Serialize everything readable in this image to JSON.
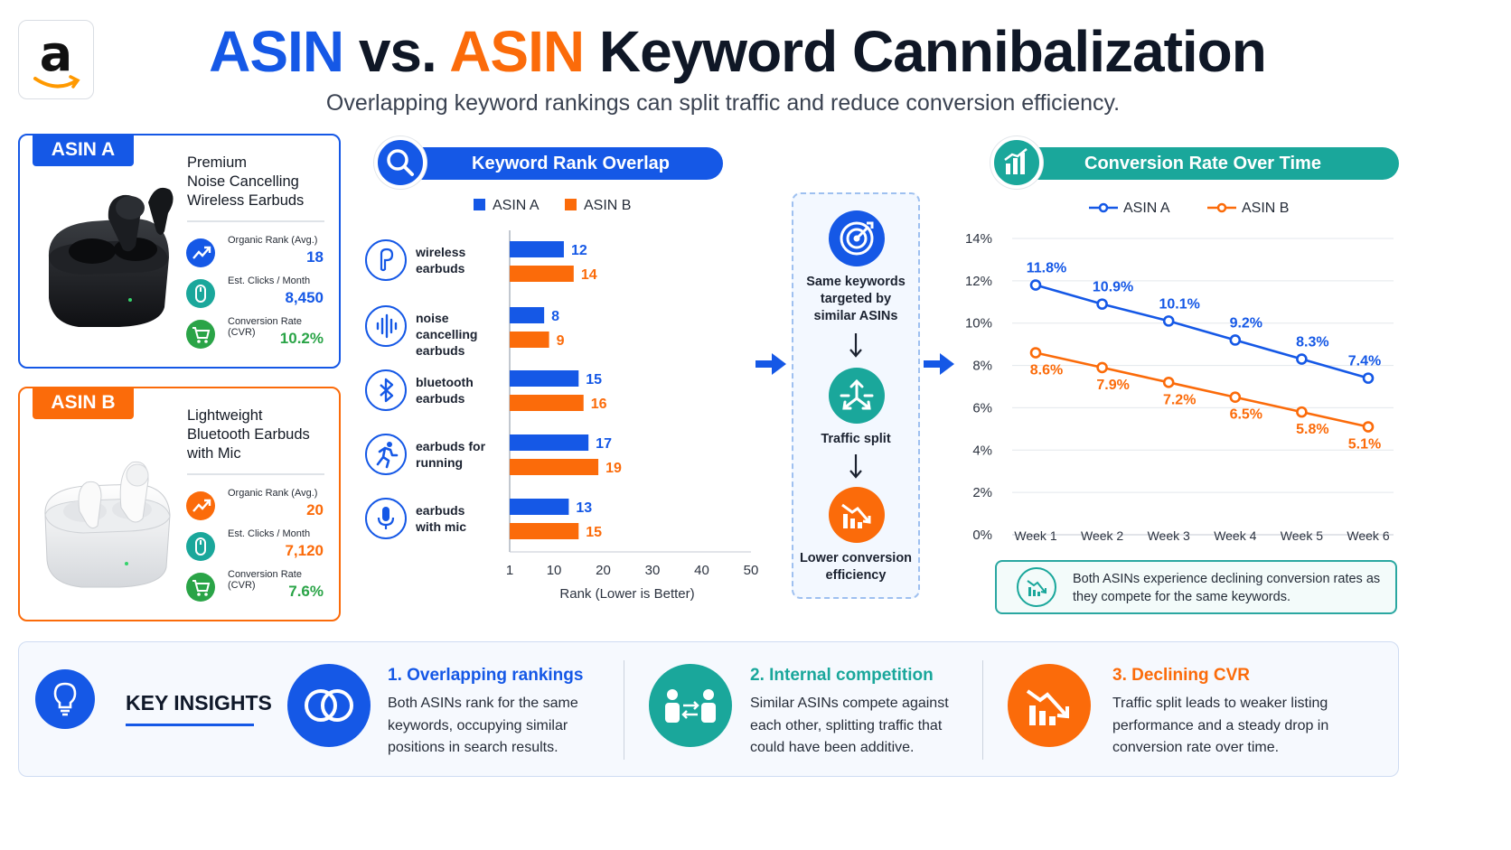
{
  "logo": {
    "letter": "a"
  },
  "header": {
    "title_a": "ASIN",
    "title_vs": "vs.",
    "title_b": "ASIN",
    "title_rest": "Keyword Cannibalization",
    "subtitle": "Overlapping keyword rankings can split traffic and reduce conversion efficiency."
  },
  "products": [
    {
      "tag": "ASIN A",
      "name_lines": [
        "Premium",
        "Noise Cancelling",
        "Wireless Earbuds"
      ],
      "metrics": [
        {
          "label": "Organic Rank (Avg.)",
          "value": "18",
          "icon": "trend-up-icon"
        },
        {
          "label": "Est. Clicks / Month",
          "value": "8,450",
          "icon": "mouse-icon"
        },
        {
          "label": "Conversion Rate (CVR)",
          "value": "10.2%",
          "icon": "cart-icon"
        }
      ]
    },
    {
      "tag": "ASIN B",
      "name_lines": [
        "Lightweight",
        "Bluetooth Earbuds",
        "with Mic"
      ],
      "metrics": [
        {
          "label": "Organic Rank (Avg.)",
          "value": "20",
          "icon": "trend-up-icon"
        },
        {
          "label": "Est. Clicks / Month",
          "value": "7,120",
          "icon": "mouse-icon"
        },
        {
          "label": "Conversion Rate (CVR)",
          "value": "7.6%",
          "icon": "cart-icon"
        }
      ]
    }
  ],
  "rank_section": {
    "title": "Keyword Rank Overlap",
    "icon": "search-icon"
  },
  "cvr_section": {
    "title": "Conversion Rate Over Time",
    "icon": "bar-chart-icon"
  },
  "flow": {
    "steps": [
      {
        "text_lines": [
          "Same keywords",
          "targeted by",
          "similar ASINs"
        ],
        "icon": "target-icon",
        "color": "#1558e6"
      },
      {
        "text_lines": [
          "Traffic split"
        ],
        "icon": "split-arrows-icon",
        "color": "#1aa79b"
      },
      {
        "text_lines": [
          "Lower conversion",
          "efficiency"
        ],
        "icon": "declining-chart-icon",
        "color": "#fb6b0a"
      }
    ]
  },
  "chart_data": [
    {
      "type": "bar",
      "orientation": "horizontal",
      "categories": [
        "wireless earbuds",
        "noise cancelling earbuds",
        "bluetooth earbuds",
        "earbuds for running",
        "earbuds with mic"
      ],
      "category_lines": [
        [
          "wireless",
          "earbuds"
        ],
        [
          "noise cancelling",
          "earbuds"
        ],
        [
          "bluetooth",
          "earbuds"
        ],
        [
          "earbuds for",
          "running"
        ],
        [
          "earbuds",
          "with mic"
        ]
      ],
      "category_icons": [
        "earbud-icon",
        "soundwave-icon",
        "bluetooth-icon",
        "runner-icon",
        "microphone-icon"
      ],
      "series": [
        {
          "name": "ASIN A",
          "values": [
            12,
            8,
            15,
            17,
            13
          ],
          "color": "#1558e6"
        },
        {
          "name": "ASIN B",
          "values": [
            14,
            9,
            16,
            19,
            15
          ],
          "color": "#fb6b0a"
        }
      ],
      "xlabel": "Rank (Lower is Better)",
      "xticks": [
        1,
        10,
        20,
        30,
        40,
        50
      ],
      "xlim": [
        1,
        50
      ],
      "legend": "top"
    },
    {
      "type": "line",
      "categories": [
        "Week 1",
        "Week 2",
        "Week 3",
        "Week 4",
        "Week 5",
        "Week 6"
      ],
      "series": [
        {
          "name": "ASIN A",
          "values": [
            11.8,
            10.9,
            10.1,
            9.2,
            8.3,
            7.4
          ],
          "labels": [
            "11.8%",
            "10.9%",
            "10.1%",
            "9.2%",
            "8.3%",
            "7.4%"
          ],
          "color": "#1558e6"
        },
        {
          "name": "ASIN B",
          "values": [
            8.6,
            7.9,
            7.2,
            6.5,
            5.8,
            5.1
          ],
          "labels": [
            "8.6%",
            "7.9%",
            "7.2%",
            "6.5%",
            "5.8%",
            "5.1%"
          ],
          "color": "#fb6b0a"
        }
      ],
      "yticks": [
        "0%",
        "2%",
        "4%",
        "6%",
        "8%",
        "10%",
        "12%",
        "14%"
      ],
      "ylim": [
        0,
        14
      ],
      "grid": true,
      "legend": "top"
    }
  ],
  "cvr_note": {
    "text": "Both ASINs experience declining conversion rates as they compete for the same keywords.",
    "icon": "declining-chart-icon"
  },
  "insights": {
    "title": "KEY INSIGHTS",
    "icon": "lightbulb-icon",
    "items": [
      {
        "heading": "1. Overlapping rankings",
        "body": "Both ASINs rank for the same keywords, occupying similar positions in search results.",
        "icon": "overlap-circles-icon",
        "color": "#1558e6"
      },
      {
        "heading": "2. Internal competition",
        "body": "Similar ASINs compete against each other, splitting traffic that could have been additive.",
        "icon": "competition-icon",
        "color": "#1aa79b"
      },
      {
        "heading": "3. Declining CVR",
        "body": "Traffic split leads to weaker listing performance and a steady drop in conversion rate over time.",
        "icon": "declining-chart-icon",
        "color": "#fb6b0a"
      }
    ]
  }
}
